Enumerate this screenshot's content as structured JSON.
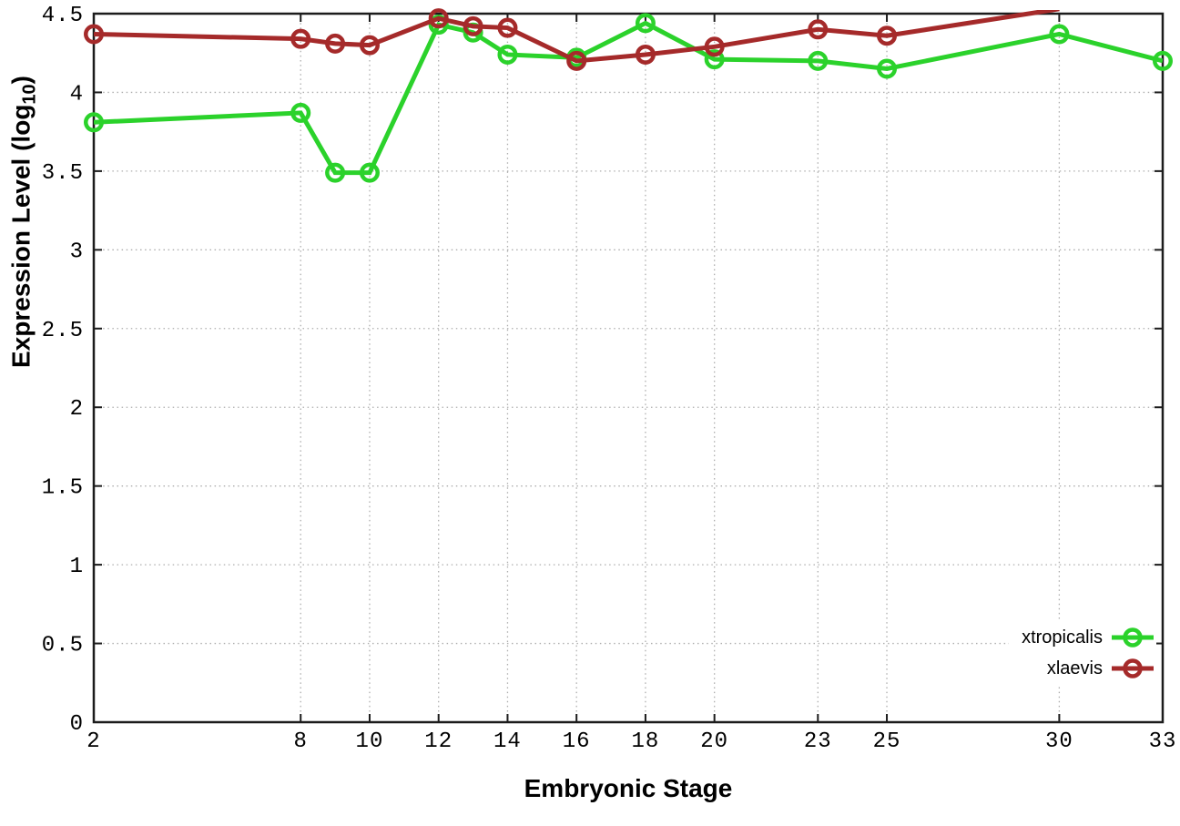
{
  "chart_data": {
    "type": "line",
    "xlabel": "Embryonic Stage",
    "ylabel": "Expression Level (log10)",
    "ylabel_parts": {
      "main": "Expression Level (log",
      "sub": "10",
      "end": ")"
    },
    "xlim": [
      2,
      33
    ],
    "ylim": [
      0,
      4.5
    ],
    "xticks": [
      2,
      8,
      10,
      12,
      14,
      16,
      18,
      20,
      23,
      25,
      30,
      33
    ],
    "xtick_labels": [
      "2",
      "8",
      "10",
      "12",
      "14",
      "16",
      "18",
      "20",
      "23",
      "25",
      "30",
      "33"
    ],
    "yticks": [
      0,
      0.5,
      1,
      1.5,
      2,
      2.5,
      3,
      3.5,
      4,
      4.5
    ],
    "ytick_labels": [
      "0",
      "0.5",
      "1",
      "1.5",
      "2",
      "2.5",
      "3",
      "3.5",
      "4",
      "4.5"
    ],
    "grid": true,
    "grid_color": "#adadad",
    "axis_color": "#1c1c1c",
    "legend_position": "bottom-right-inside",
    "series": [
      {
        "name": "xtropicalis",
        "color": "#2bd22b",
        "x": [
          2,
          8,
          9,
          10,
          12,
          13,
          14,
          16,
          18,
          20,
          23,
          25,
          30,
          33
        ],
        "y": [
          3.81,
          3.87,
          3.49,
          3.49,
          4.43,
          4.38,
          4.24,
          4.22,
          4.44,
          4.21,
          4.2,
          4.15,
          4.37,
          4.2
        ]
      },
      {
        "name": "xlaevis",
        "color": "#a52a2a",
        "x": [
          2,
          8,
          9,
          10,
          12,
          13,
          14,
          16,
          18,
          20,
          23,
          25,
          30
        ],
        "y": [
          4.37,
          4.34,
          4.31,
          4.3,
          4.47,
          4.42,
          4.41,
          4.2,
          4.24,
          4.29,
          4.4,
          4.36,
          4.53
        ]
      }
    ]
  }
}
